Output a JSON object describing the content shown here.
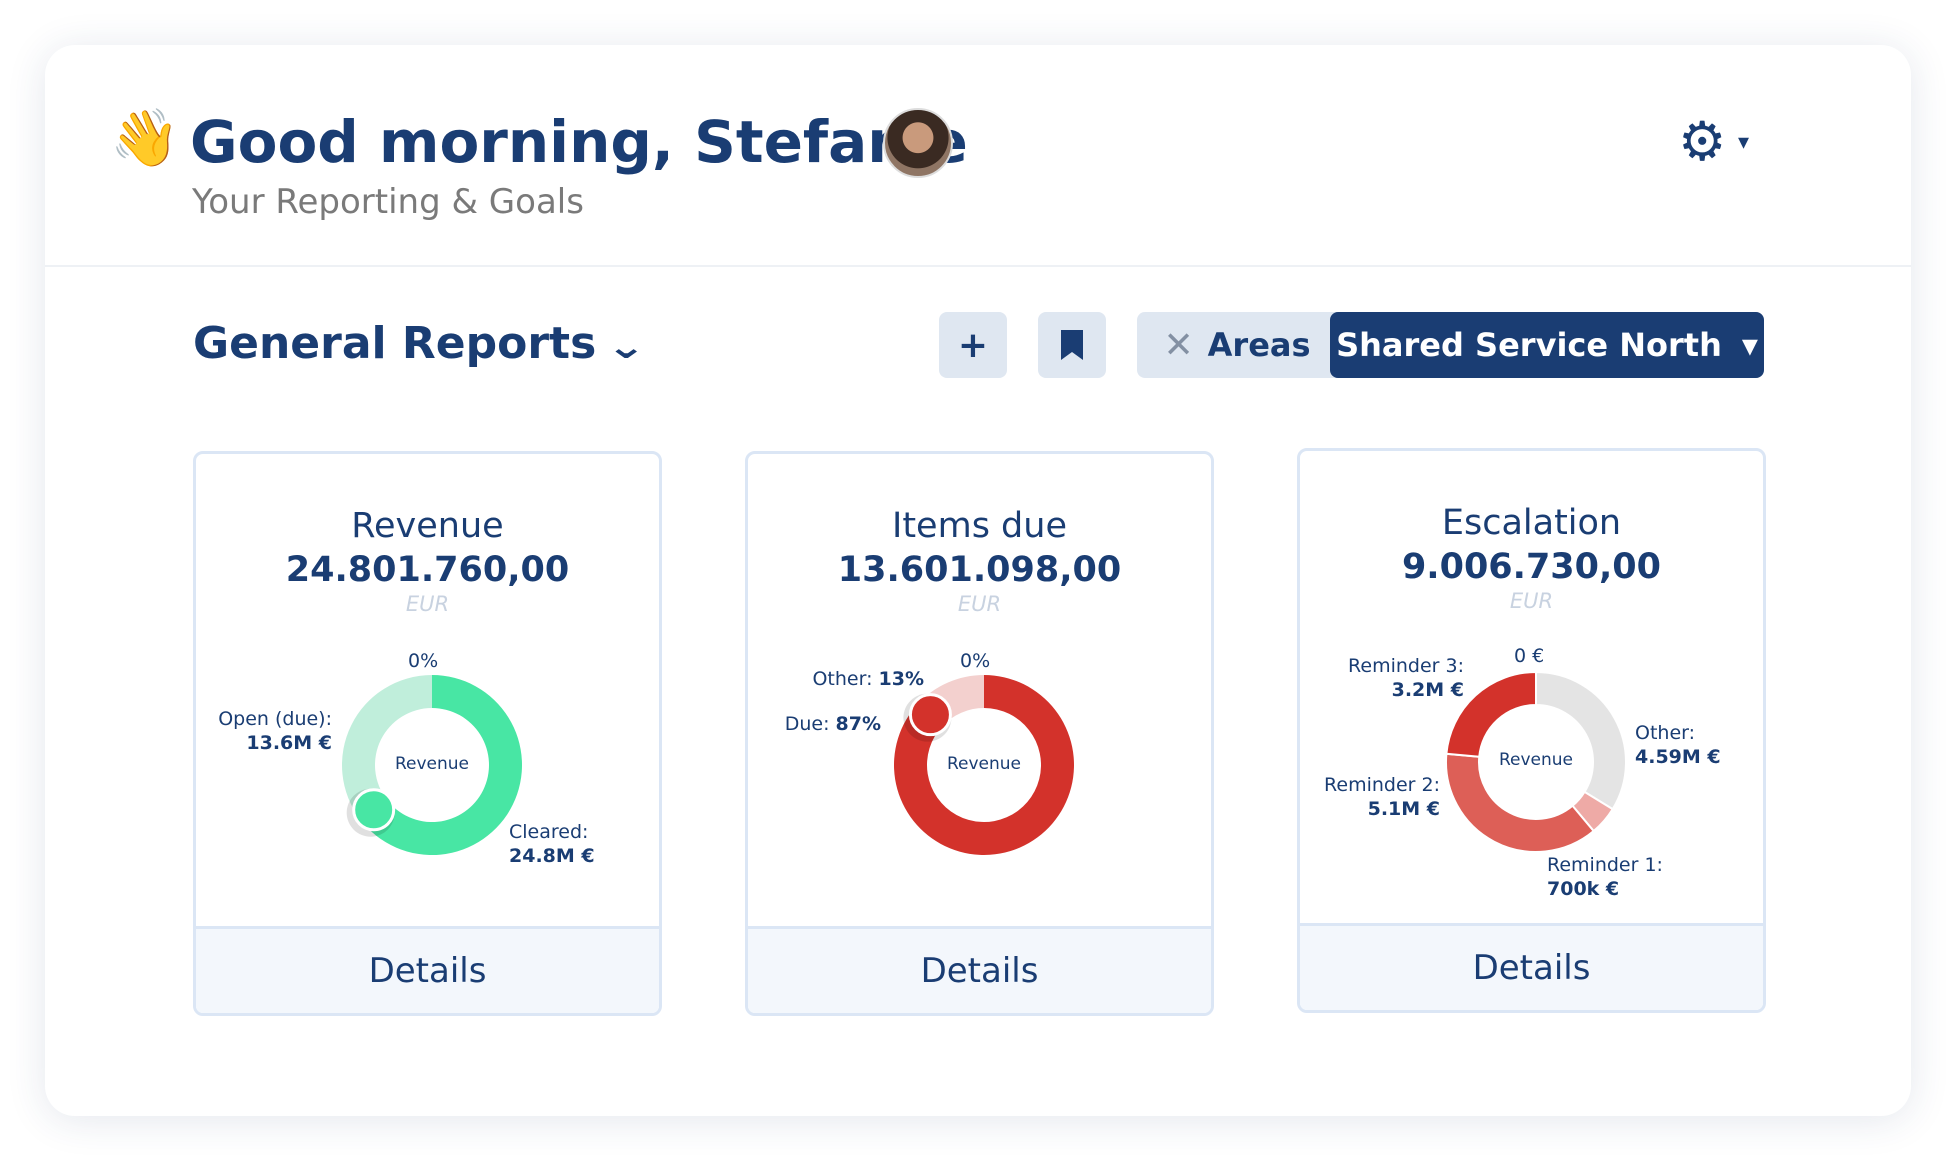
{
  "header": {
    "wave_emoji": "👋",
    "title": "Good morning, Stefanie",
    "subtitle": "Your Reporting & Goals",
    "settings_icon": "gear-icon",
    "caret": "▾"
  },
  "toolbar": {
    "section_title": "General Reports",
    "section_chevron": "⌄",
    "add_label": "+",
    "bookmark_icon": "bookmark-icon",
    "filter_clear": "✕",
    "filter_label": "Areas",
    "area_value": "Shared Service North",
    "area_caret": "▾"
  },
  "colors": {
    "primary": "#1a3d73",
    "green": "#48e6a4",
    "green_light": "#c0eedb",
    "red": "#d3322b",
    "red_mid": "#dd5f57",
    "red_light": "#eeaaa6",
    "pink_light": "#f3d0ce",
    "grey": "#e4e4e4"
  },
  "cards": [
    {
      "title": "Revenue",
      "value": "24.801.760,00",
      "unit": "EUR",
      "center": "Revenue",
      "details": "Details",
      "top_label": "0%",
      "labels": [
        {
          "name": "Open (due):",
          "value": "13.6M €"
        },
        {
          "name": "Cleared:",
          "value": "24.8M €"
        }
      ]
    },
    {
      "title": "Items due",
      "value": "13.601.098,00",
      "unit": "EUR",
      "center": "Revenue",
      "details": "Details",
      "top_label": "0%",
      "labels": [
        {
          "name": "Other:",
          "value": "13%"
        },
        {
          "name": "Due:",
          "value": "87%"
        }
      ]
    },
    {
      "title": "Escalation",
      "value": "9.006.730,00",
      "unit": "EUR",
      "center": "Revenue",
      "details": "Details",
      "top_label": "0 €",
      "labels": [
        {
          "name": "Reminder 3:",
          "value": "3.2M €"
        },
        {
          "name": "Other:",
          "value": "4.59M €"
        },
        {
          "name": "Reminder 2:",
          "value": "5.1M €"
        },
        {
          "name": "Reminder 1:",
          "value": "700k €"
        }
      ]
    }
  ],
  "chart_data": [
    {
      "type": "pie",
      "variant": "donut",
      "slices": [
        {
          "label": "Cleared",
          "value": 24.8,
          "color": "#48e6a4"
        },
        {
          "label": "Open (due)",
          "value": 13.6,
          "color": "#c0eedb"
        }
      ],
      "unit": "M €",
      "knob": true
    },
    {
      "type": "pie",
      "variant": "donut",
      "slices": [
        {
          "label": "Due",
          "value": 87,
          "color": "#d3322b"
        },
        {
          "label": "Other",
          "value": 13,
          "color": "#f3d0ce"
        }
      ],
      "unit": "%",
      "knob": true
    },
    {
      "type": "pie",
      "variant": "donut",
      "slices": [
        {
          "label": "Other",
          "value": 4.59,
          "color": "#e4e4e4"
        },
        {
          "label": "Reminder 1",
          "value": 0.7,
          "color": "#eeaaa6"
        },
        {
          "label": "Reminder 2",
          "value": 5.1,
          "color": "#dd5f57"
        },
        {
          "label": "Reminder 3",
          "value": 3.2,
          "color": "#d3322b"
        }
      ],
      "unit": "M €",
      "knob": false
    }
  ]
}
